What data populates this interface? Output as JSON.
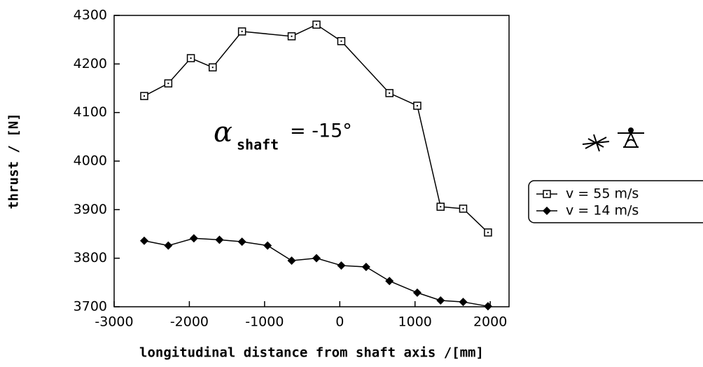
{
  "chart_data": {
    "type": "line",
    "xlabel": "longitudinal distance from shaft axis /[mm]",
    "ylabel": "thrust / [N]",
    "annotation": {
      "symbol": "α",
      "subscript": "shaft",
      "text": "= -15°"
    },
    "xlim": [
      -3000,
      2250
    ],
    "xticks": [
      -3000,
      -2000,
      -1000,
      0,
      1000,
      2000
    ],
    "ylim": [
      3700,
      4300
    ],
    "yticks": [
      3700,
      3800,
      3900,
      4000,
      4100,
      4200,
      4300
    ],
    "series": [
      {
        "name": "v = 55 m/s",
        "color": "#000000",
        "marker": "square-open",
        "x": [
          -2600,
          -2280,
          -1980,
          -1690,
          -1300,
          -640,
          -310,
          20,
          660,
          1030,
          1340,
          1640,
          1970
        ],
        "values": [
          4134,
          4160,
          4212,
          4193,
          4267,
          4257,
          4281,
          4247,
          4140,
          4114,
          3906,
          3902,
          3853
        ]
      },
      {
        "name": "v = 14 m/s",
        "color": "#000000",
        "marker": "diamond-filled",
        "x": [
          -2600,
          -2280,
          -1940,
          -1600,
          -1300,
          -960,
          -640,
          -310,
          20,
          350,
          660,
          1030,
          1340,
          1640,
          1970
        ],
        "values": [
          3836,
          3826,
          3841,
          3838,
          3834,
          3826,
          3795,
          3800,
          3785,
          3782,
          3753,
          3729,
          3713,
          3710,
          3701
        ]
      }
    ]
  }
}
